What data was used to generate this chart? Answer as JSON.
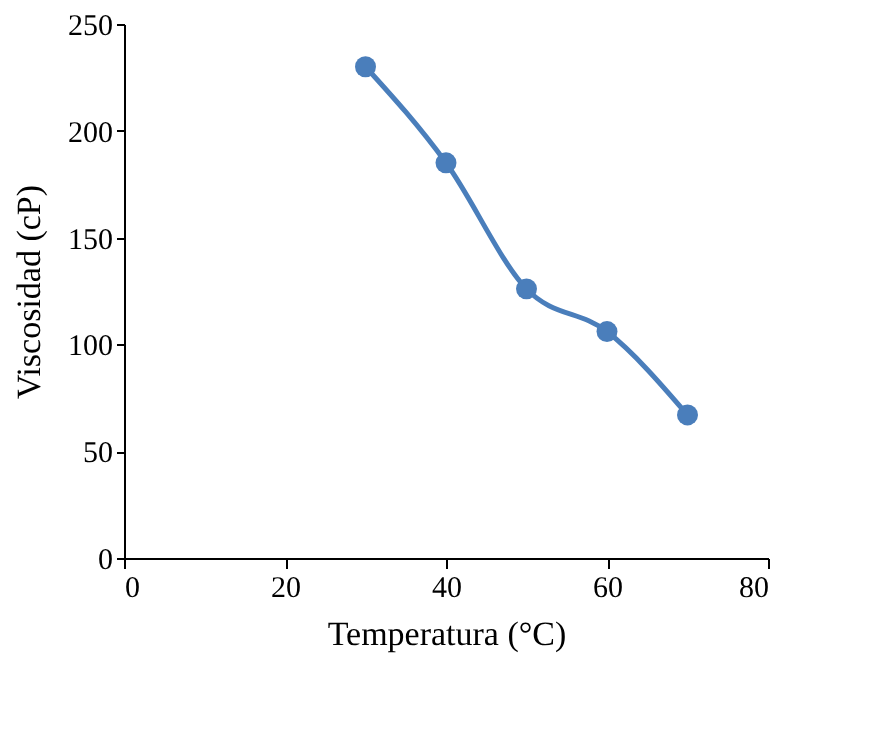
{
  "chart_data": {
    "type": "line",
    "xlabel": "Temperatura (°C)",
    "ylabel": "Viscosidad (cP)",
    "x": [
      30,
      40,
      50,
      60,
      70
    ],
    "series": [
      {
        "color": "#4a7ebb",
        "values": [
          230,
          185,
          126,
          106,
          67
        ]
      }
    ],
    "xlim": [
      0,
      80
    ],
    "xticks": [
      0,
      20,
      40,
      60,
      80
    ],
    "ylim": [
      0,
      250
    ],
    "yticks": [
      0,
      50,
      100,
      150,
      200,
      250
    ],
    "grid": false,
    "marker": "circle",
    "line_style": "solid"
  }
}
